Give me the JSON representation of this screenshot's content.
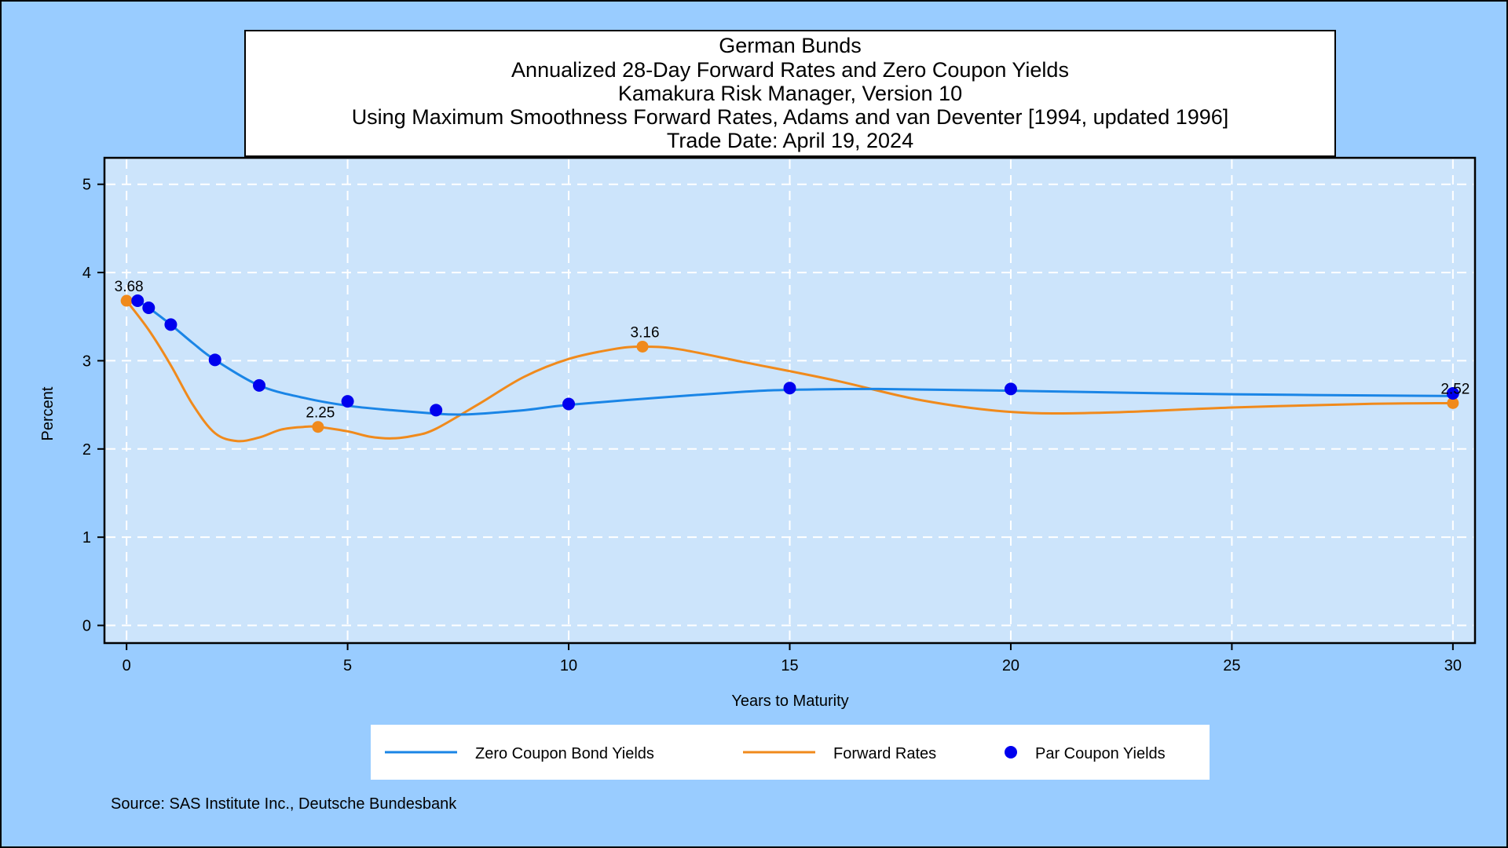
{
  "title_lines": [
    "German Bunds",
    "Annualized 28-Day Forward Rates and Zero Coupon Yields",
    "Kamakura Risk Manager, Version 10",
    "Using Maximum Smoothness Forward Rates, Adams and van Deventer [1994, updated 1996]",
    "Trade Date: April 19, 2024"
  ],
  "source_note": "Source: SAS Institute Inc., Deutsche Bundesbank",
  "colors": {
    "page_bg": "#99ccff",
    "plot_bg": "#cce4fb",
    "zero_line": "#1a85e6",
    "forward_line": "#f08a1c",
    "par_marker": "#0000ee",
    "grid": "#ffffff"
  },
  "chart_data": {
    "type": "line",
    "xlabel": "Years to Maturity",
    "ylabel": "Percent",
    "xlim": [
      -0.5,
      30.5
    ],
    "ylim": [
      -0.2,
      5.3
    ],
    "xticks": [
      0,
      5,
      10,
      15,
      20,
      25,
      30
    ],
    "yticks": [
      0,
      1,
      2,
      3,
      4,
      5
    ],
    "grid": true,
    "legend_position": "bottom",
    "series": [
      {
        "name": "Zero Coupon Bond Yields",
        "style": "line",
        "color": "#1a85e6",
        "x": [
          0.25,
          0.5,
          1,
          1.5,
          2,
          3,
          4,
          5,
          6,
          7,
          7.5,
          8,
          9,
          10,
          12,
          14,
          15,
          17,
          20,
          25,
          30
        ],
        "y": [
          3.68,
          3.6,
          3.41,
          3.2,
          3.01,
          2.72,
          2.58,
          2.49,
          2.44,
          2.4,
          2.39,
          2.4,
          2.44,
          2.5,
          2.58,
          2.65,
          2.67,
          2.68,
          2.66,
          2.62,
          2.6
        ]
      },
      {
        "name": "Forward Rates",
        "style": "line",
        "color": "#f08a1c",
        "x": [
          0,
          0.5,
          1,
          1.5,
          2,
          2.5,
          3,
          3.5,
          4,
          4.33,
          5,
          5.5,
          6,
          6.5,
          7,
          8,
          9,
          10,
          11,
          11.67,
          12.5,
          14,
          16,
          18,
          20,
          22,
          25,
          28,
          30
        ],
        "y": [
          3.68,
          3.35,
          2.95,
          2.5,
          2.18,
          2.09,
          2.13,
          2.22,
          2.25,
          2.25,
          2.2,
          2.14,
          2.12,
          2.15,
          2.23,
          2.52,
          2.82,
          3.02,
          3.13,
          3.16,
          3.13,
          2.98,
          2.78,
          2.55,
          2.42,
          2.41,
          2.47,
          2.51,
          2.52
        ]
      },
      {
        "name": "Par Coupon Yields",
        "style": "marker",
        "color": "#0000ee",
        "x": [
          0.25,
          0.5,
          1,
          2,
          3,
          5,
          7,
          10,
          15,
          20,
          30
        ],
        "y": [
          3.68,
          3.6,
          3.41,
          3.01,
          2.72,
          2.54,
          2.44,
          2.51,
          2.69,
          2.68,
          2.63
        ]
      }
    ],
    "annotations": [
      {
        "label": "3.68",
        "x": 0,
        "y": 3.68,
        "series": "Forward Rates"
      },
      {
        "label": "2.25",
        "x": 4.33,
        "y": 2.25,
        "series": "Forward Rates"
      },
      {
        "label": "3.16",
        "x": 11.67,
        "y": 3.16,
        "series": "Forward Rates"
      },
      {
        "label": "2.52",
        "x": 30,
        "y": 2.52,
        "series": "Forward Rates"
      }
    ]
  }
}
